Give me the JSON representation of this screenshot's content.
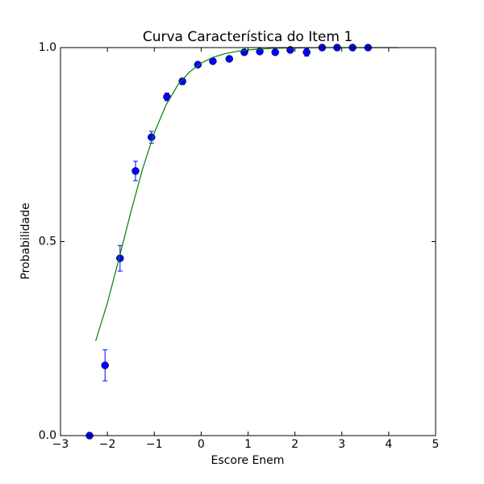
{
  "chart_data": {
    "type": "scatter",
    "title": "Curva Característica do Item 1",
    "x_label": "Escore Enem",
    "y_label": "Probabilidade",
    "xlim": [
      -3,
      5
    ],
    "ylim": [
      0,
      1
    ],
    "xticks": [
      {
        "value": -3,
        "label": "−3"
      },
      {
        "value": -2,
        "label": "−2"
      },
      {
        "value": -1,
        "label": "−1"
      },
      0,
      1,
      2,
      3,
      4,
      5
    ],
    "yticks": [
      {
        "value": 0,
        "label": "0.0"
      },
      {
        "value": 0.5,
        "label": "0.5"
      },
      {
        "value": 1,
        "label": "1.0"
      }
    ],
    "grid": false,
    "series": [
      {
        "type": "errorbar",
        "color": "#0000ff",
        "x": [
          -2.38,
          -2.05,
          -1.73,
          -1.4,
          -1.06,
          -0.73,
          -0.4,
          -0.07,
          0.25,
          0.6,
          0.92,
          1.25,
          1.58,
          1.9,
          2.25,
          2.58,
          2.9,
          3.23,
          3.56
        ],
        "values": [
          0.0,
          0.181,
          0.457,
          0.682,
          0.769,
          0.873,
          0.913,
          0.956,
          0.965,
          0.971,
          0.988,
          0.99,
          0.988,
          0.994,
          0.988,
          1.0,
          1.0,
          1.0,
          1.0
        ],
        "errors": [
          0.0,
          0.04,
          0.033,
          0.025,
          0.015,
          0.01,
          0.008,
          0.005,
          0.005,
          0.005,
          0.004,
          0.004,
          0.004,
          0.003,
          0.01,
          0.0,
          0.0,
          0.0,
          0.0
        ]
      },
      {
        "type": "line",
        "color": "#008000",
        "x": [
          -2.25,
          -2.0,
          -1.75,
          -1.5,
          -1.25,
          -1.0,
          -0.75,
          -0.5,
          -0.25,
          0,
          0.25,
          0.5,
          0.75,
          1.0,
          1.25,
          1.5,
          1.75,
          2.0,
          2.5,
          3.0,
          3.5,
          4.2
        ],
        "values": [
          0.244,
          0.342,
          0.457,
          0.576,
          0.687,
          0.78,
          0.852,
          0.903,
          0.937,
          0.96,
          0.975,
          0.984,
          0.99,
          0.994,
          0.996,
          0.998,
          0.999,
          0.999,
          1.0,
          1.0,
          1.0,
          1.0
        ]
      }
    ]
  }
}
